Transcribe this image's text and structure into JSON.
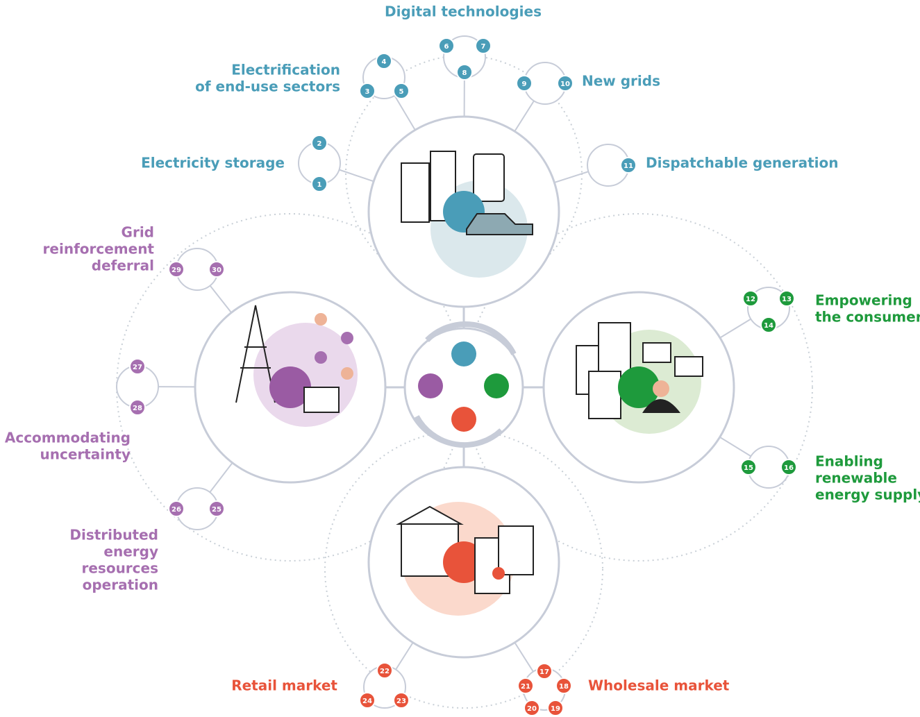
{
  "title": "Digital technologies",
  "groups": [
    {
      "label": [
        "Electrification",
        "of end-use sectors"
      ],
      "nodes": [
        "4",
        "3",
        "5"
      ]
    },
    {
      "label": [
        "Digital technologies"
      ],
      "nodes": [
        "6",
        "7",
        "8"
      ]
    },
    {
      "label": [
        "New grids"
      ],
      "nodes": [
        "9",
        "10"
      ]
    },
    {
      "label": [
        "Electricity storage"
      ],
      "nodes": [
        "2",
        "1"
      ]
    },
    {
      "label": [
        "Dispatchable generation"
      ],
      "nodes": [
        "11"
      ]
    },
    {
      "label": [
        "Grid",
        "reinforcement",
        "deferral"
      ],
      "nodes": [
        "29",
        "30"
      ]
    },
    {
      "label": [
        "Accommodating",
        "uncertainty"
      ],
      "nodes": [
        "27",
        "28"
      ]
    },
    {
      "label": [
        "Distributed",
        "energy",
        "resources",
        "operation"
      ],
      "nodes": [
        "26",
        "25"
      ]
    },
    {
      "label": [
        "Empowering",
        "the consumer"
      ],
      "nodes": [
        "12",
        "13",
        "14"
      ]
    },
    {
      "label": [
        "Enabling",
        "renewable",
        "energy supply"
      ],
      "nodes": [
        "15",
        "16"
      ]
    },
    {
      "label": [
        "Retail market"
      ],
      "nodes": [
        "22",
        "24",
        "23"
      ]
    },
    {
      "label": [
        "Wholesale market"
      ],
      "nodes": [
        "17",
        "21",
        "18",
        "20",
        "19"
      ]
    }
  ]
}
